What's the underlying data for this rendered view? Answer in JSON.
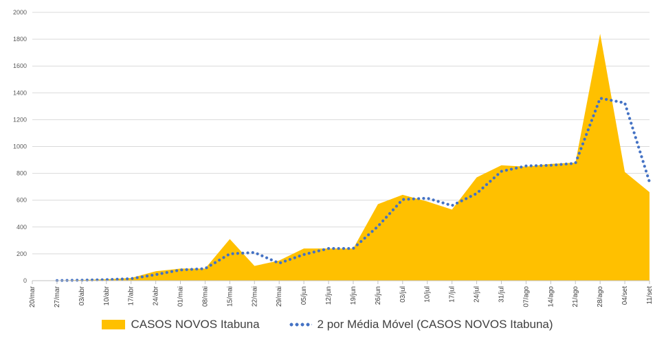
{
  "chart_data": {
    "type": "area",
    "x": [
      "20/mar",
      "27/mar",
      "03/abr",
      "10/abr",
      "17/abr",
      "24/abr",
      "01/mai",
      "08/mai",
      "15/mai",
      "22/mai",
      "29/mai",
      "05/jun",
      "12/jun",
      "19/jun",
      "26/jun",
      "03/jul",
      "10/jul",
      "17/jul",
      "24/jul",
      "31/jul",
      "07/ago",
      "14/ago",
      "21/ago",
      "28/ago",
      "04/set",
      "11/set"
    ],
    "ylim": [
      0,
      2000
    ],
    "yticks": [
      "0",
      "200",
      "400",
      "600",
      "800",
      "1000",
      "1200",
      "1400",
      "1600",
      "1800",
      "2000"
    ],
    "grid": true,
    "legend_position": "bottom",
    "series": [
      {
        "name": "CASOS NOVOS Itabuna",
        "kind": "area",
        "color": "#FFC000",
        "values": [
          0,
          2,
          5,
          10,
          20,
          70,
          90,
          90,
          310,
          110,
          150,
          240,
          240,
          240,
          570,
          640,
          590,
          530,
          770,
          860,
          850,
          870,
          880,
          1840,
          810,
          660
        ]
      },
      {
        "name": "2 por Média Móvel (CASOS NOVOS Itabuna)",
        "kind": "dotted-line",
        "color": "#4472C4",
        "values": [
          null,
          1,
          3.5,
          7.5,
          15,
          45,
          80,
          90,
          200,
          210,
          130,
          195,
          240,
          240,
          405,
          605,
          615,
          560,
          650,
          815,
          855,
          860,
          875,
          1360,
          1325,
          735
        ]
      }
    ],
    "legend": [
      "CASOS NOVOS Itabuna",
      "2 por Média Móvel (CASOS NOVOS Itabuna)"
    ]
  }
}
